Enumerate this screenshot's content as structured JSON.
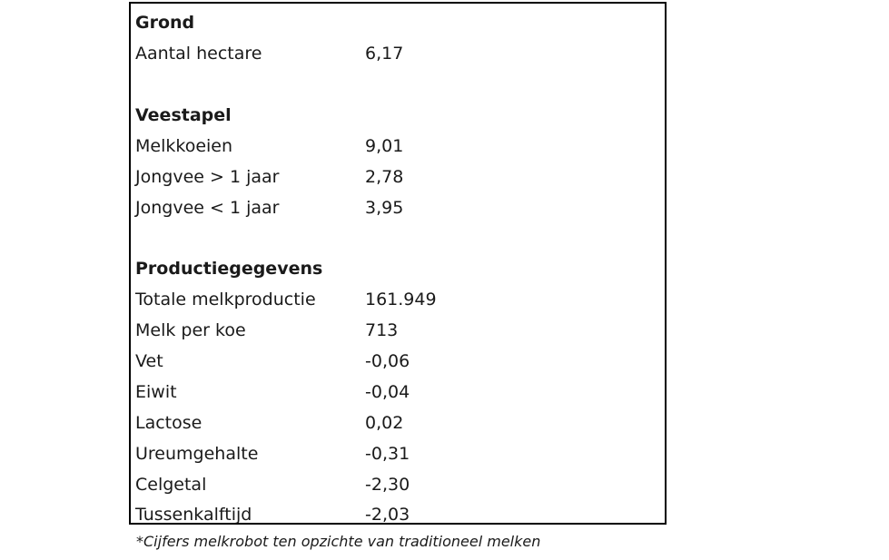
{
  "sections": {
    "grond": {
      "heading": "Grond",
      "rows": [
        {
          "label": "Aantal hectare",
          "value": "6,17"
        }
      ]
    },
    "veestapel": {
      "heading": "Veestapel",
      "rows": [
        {
          "label": "Melkkoeien",
          "value": "9,01"
        },
        {
          "label": "Jongvee > 1 jaar",
          "value": "2,78"
        },
        {
          "label": "Jongvee < 1 jaar",
          "value": "3,95"
        }
      ]
    },
    "productie": {
      "heading": "Productiegegevens",
      "rows": [
        {
          "label": "Totale melkproductie",
          "value": "161.949"
        },
        {
          "label": "Melk per koe",
          "value": "713"
        },
        {
          "label": "Vet",
          "value": "-0,06"
        },
        {
          "label": "Eiwit",
          "value": "-0,04"
        },
        {
          "label": "Lactose",
          "value": "0,02"
        },
        {
          "label": "Ureumgehalte",
          "value": "-0,31"
        },
        {
          "label": "Celgetal",
          "value": "-2,30"
        },
        {
          "label": "Tussenkalftijd",
          "value": "-2,03"
        }
      ]
    }
  },
  "footnote": "*Cijfers melkrobot ten opzichte van traditioneel melken"
}
